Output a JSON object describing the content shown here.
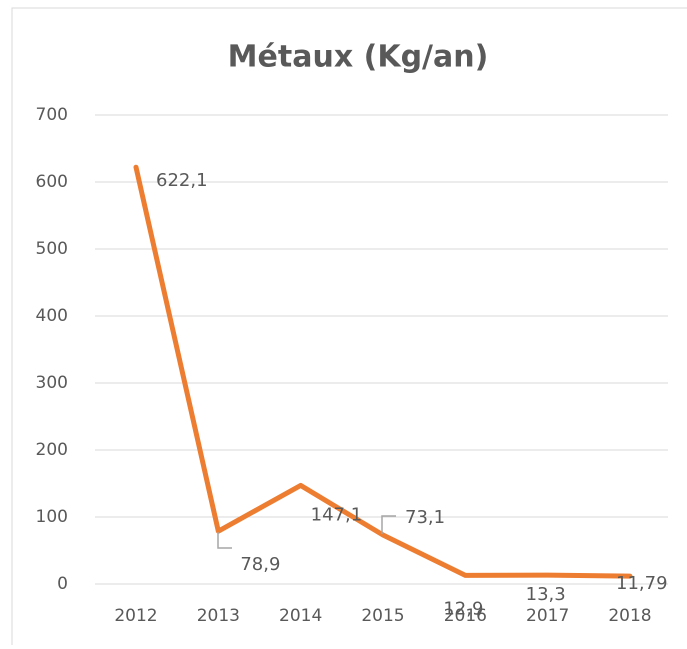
{
  "chart_data": {
    "type": "line",
    "title": "Métaux (Kg/an)",
    "categories": [
      "2012",
      "2013",
      "2014",
      "2015",
      "2016",
      "2017",
      "2018"
    ],
    "series": [
      {
        "name": "Métaux",
        "color": "#ed7d31",
        "values": [
          622.1,
          78.9,
          147.1,
          73.1,
          12.9,
          13.3,
          11.79
        ],
        "value_labels": [
          "622,1",
          "78,9",
          "147,1",
          "73,1",
          "12,9",
          "13,3",
          "11,79"
        ]
      }
    ],
    "ylim": [
      0,
      700
    ],
    "yticks": [
      0,
      100,
      200,
      300,
      400,
      500,
      600,
      700
    ],
    "grid": true
  }
}
